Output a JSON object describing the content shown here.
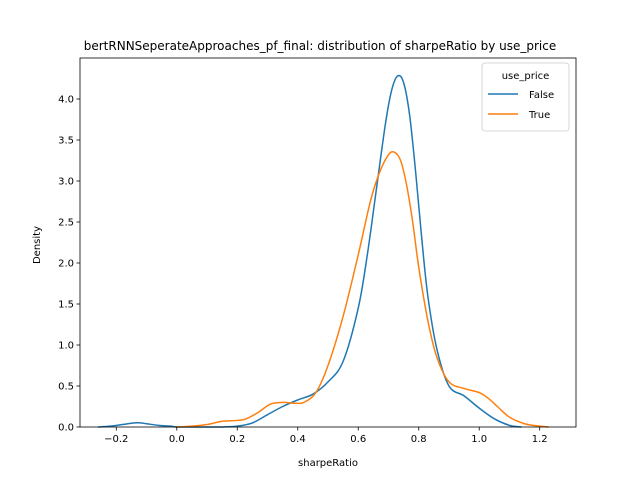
{
  "chart_data": {
    "type": "line",
    "title": "bertRNNSeperateApproaches_pf_final: distribution of sharpeRatio by use_price",
    "xlabel": "sharpeRatio",
    "ylabel": "Density",
    "xlim": [
      -0.32,
      1.32
    ],
    "ylim": [
      0,
      4.5
    ],
    "xticks": [
      -0.2,
      0.0,
      0.2,
      0.4,
      0.6,
      0.8,
      1.0,
      1.2
    ],
    "xtick_labels": [
      "−0.2",
      "0.0",
      "0.2",
      "0.4",
      "0.6",
      "0.8",
      "1.0",
      "1.2"
    ],
    "yticks": [
      0.0,
      0.5,
      1.0,
      1.5,
      2.0,
      2.5,
      3.0,
      3.5,
      4.0
    ],
    "ytick_labels": [
      "0.0",
      "0.5",
      "1.0",
      "1.5",
      "2.0",
      "2.5",
      "3.0",
      "3.5",
      "4.0"
    ],
    "grid": false,
    "legend": {
      "title": "use_price",
      "placement": "top-right"
    },
    "series": [
      {
        "name": "False",
        "color": "#1f77b4",
        "x": [
          -0.26,
          -0.22,
          -0.18,
          -0.14,
          -0.12,
          -0.1,
          -0.06,
          -0.02,
          0.0,
          0.05,
          0.1,
          0.15,
          0.2,
          0.25,
          0.3,
          0.35,
          0.4,
          0.45,
          0.5,
          0.55,
          0.6,
          0.63,
          0.66,
          0.69,
          0.71,
          0.73,
          0.75,
          0.77,
          0.79,
          0.81,
          0.83,
          0.86,
          0.9,
          0.95,
          1.0,
          1.05,
          1.1,
          1.14
        ],
        "y": [
          0.0,
          0.01,
          0.03,
          0.05,
          0.05,
          0.04,
          0.02,
          0.01,
          0.0,
          0.0,
          0.0,
          0.0,
          0.01,
          0.05,
          0.15,
          0.25,
          0.33,
          0.4,
          0.55,
          0.8,
          1.45,
          2.1,
          2.9,
          3.7,
          4.1,
          4.28,
          4.2,
          3.8,
          3.1,
          2.3,
          1.6,
          0.95,
          0.5,
          0.38,
          0.23,
          0.1,
          0.02,
          0.0
        ]
      },
      {
        "name": "True",
        "color": "#ff7f0e",
        "x": [
          0.0,
          0.05,
          0.1,
          0.15,
          0.2,
          0.23,
          0.27,
          0.31,
          0.35,
          0.39,
          0.42,
          0.46,
          0.5,
          0.55,
          0.6,
          0.64,
          0.67,
          0.7,
          0.72,
          0.74,
          0.76,
          0.78,
          0.8,
          0.83,
          0.86,
          0.9,
          0.95,
          1.0,
          1.03,
          1.06,
          1.1,
          1.15,
          1.2,
          1.23
        ],
        "y": [
          0.0,
          0.01,
          0.03,
          0.07,
          0.08,
          0.1,
          0.18,
          0.28,
          0.3,
          0.29,
          0.3,
          0.42,
          0.75,
          1.35,
          2.1,
          2.75,
          3.1,
          3.32,
          3.35,
          3.25,
          2.95,
          2.5,
          1.95,
          1.3,
          0.85,
          0.55,
          0.47,
          0.42,
          0.35,
          0.25,
          0.12,
          0.04,
          0.01,
          0.0
        ]
      }
    ]
  }
}
